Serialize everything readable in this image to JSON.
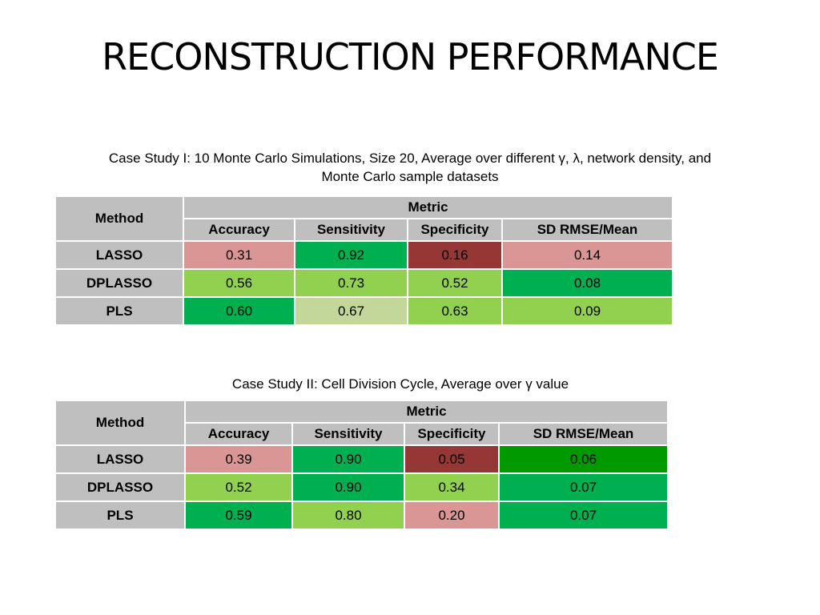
{
  "slide": {
    "title": "RECONSTRUCTION PERFORMANCE"
  },
  "colors": {
    "header_gray": "#bfbfbf",
    "pink": "#d99694",
    "dark_red": "#953735",
    "green": "#00b050",
    "dark_green": "#009900",
    "light_green": "#92d050",
    "pale_green": "#c4d79b"
  },
  "tables": [
    {
      "caption": "Case Study I: 10 Monte Carlo Simulations, Size 20, Average over different γ, λ, network density, and Monte Carlo sample datasets",
      "method_header": "Method",
      "metric_header": "Metric",
      "columns": [
        "Accuracy",
        "Sensitivity",
        "Specificity",
        "SD RMSE/Mean"
      ],
      "rows": [
        {
          "method": "LASSO",
          "values": [
            "0.31",
            "0.92",
            "0.16",
            "0.14"
          ],
          "colors": [
            "#d99694",
            "#00b050",
            "#953735",
            "#d99694"
          ]
        },
        {
          "method": "DPLASSO",
          "values": [
            "0.56",
            "0.73",
            "0.52",
            "0.08"
          ],
          "colors": [
            "#92d050",
            "#92d050",
            "#92d050",
            "#00b050"
          ]
        },
        {
          "method": "PLS",
          "values": [
            "0.60",
            "0.67",
            "0.63",
            "0.09"
          ],
          "colors": [
            "#00b050",
            "#c4d79b",
            "#92d050",
            "#92d050"
          ]
        }
      ]
    },
    {
      "caption": "Case Study II: Cell Division Cycle, Average over γ value",
      "method_header": "Method",
      "metric_header": "Metric",
      "columns": [
        "Accuracy",
        "Sensitivity",
        "Specificity",
        "SD RMSE/Mean"
      ],
      "rows": [
        {
          "method": "LASSO",
          "values": [
            "0.39",
            "0.90",
            "0.05",
            "0.06"
          ],
          "colors": [
            "#d99694",
            "#00b050",
            "#953735",
            "#009900"
          ]
        },
        {
          "method": "DPLASSO",
          "values": [
            "0.52",
            "0.90",
            "0.34",
            "0.07"
          ],
          "colors": [
            "#92d050",
            "#00b050",
            "#92d050",
            "#00b050"
          ]
        },
        {
          "method": "PLS",
          "values": [
            "0.59",
            "0.80",
            "0.20",
            "0.07"
          ],
          "colors": [
            "#00b050",
            "#92d050",
            "#d99694",
            "#00b050"
          ]
        }
      ]
    }
  ]
}
